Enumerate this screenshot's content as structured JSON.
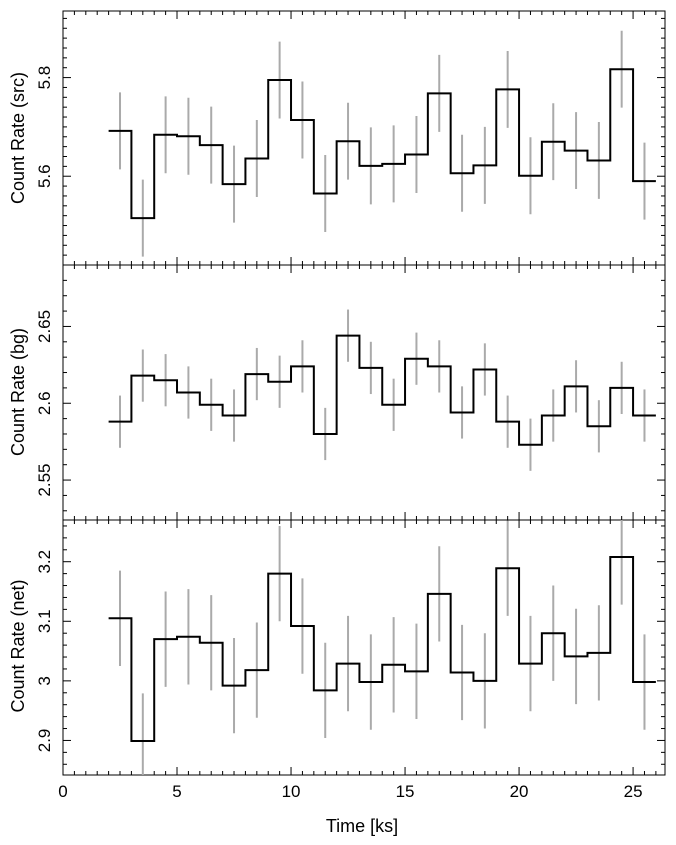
{
  "chart_data": [
    {
      "type": "line",
      "ylabel": "Count Rate (src)",
      "xlabel": "",
      "xlim": [
        0,
        26.4
      ],
      "ylim": [
        5.42,
        5.935
      ],
      "yticks_major": [
        5.6,
        5.8
      ],
      "ytick_labels": [
        "5.6",
        "5.8"
      ],
      "yminor_step": 0.02,
      "series": [
        {
          "x": [
            2.5,
            3.5,
            4.5,
            5.5,
            6.5,
            7.5,
            8.5,
            9.5,
            10.5,
            11.5,
            12.5,
            13.5,
            14.5,
            15.5,
            16.5,
            17.5,
            18.5,
            19.5,
            20.5,
            21.5,
            22.5,
            23.5,
            24.5,
            25.5
          ],
          "values": [
            5.692,
            5.515,
            5.684,
            5.681,
            5.663,
            5.584,
            5.636,
            5.795,
            5.714,
            5.565,
            5.671,
            5.621,
            5.625,
            5.644,
            5.768,
            5.606,
            5.622,
            5.776,
            5.601,
            5.67,
            5.652,
            5.632,
            5.817,
            5.59
          ],
          "errors": [
            0.078,
            0.078,
            0.078,
            0.078,
            0.078,
            0.078,
            0.078,
            0.078,
            0.078,
            0.078,
            0.078,
            0.078,
            0.078,
            0.078,
            0.078,
            0.078,
            0.078,
            0.078,
            0.078,
            0.078,
            0.078,
            0.078,
            0.078,
            0.078
          ]
        }
      ]
    },
    {
      "type": "line",
      "ylabel": "Count Rate (bg)",
      "xlabel": "",
      "xlim": [
        0,
        26.4
      ],
      "ylim": [
        2.524,
        2.69
      ],
      "yticks_major": [
        2.55,
        2.6,
        2.65
      ],
      "ytick_labels": [
        "2.55",
        "2.6",
        "2.65"
      ],
      "yminor_step": 0.01,
      "series": [
        {
          "x": [
            2.5,
            3.5,
            4.5,
            5.5,
            6.5,
            7.5,
            8.5,
            9.5,
            10.5,
            11.5,
            12.5,
            13.5,
            14.5,
            15.5,
            16.5,
            17.5,
            18.5,
            19.5,
            20.5,
            21.5,
            22.5,
            23.5,
            24.5,
            25.5
          ],
          "values": [
            2.588,
            2.618,
            2.615,
            2.607,
            2.599,
            2.592,
            2.619,
            2.614,
            2.624,
            2.58,
            2.644,
            2.623,
            2.599,
            2.629,
            2.624,
            2.594,
            2.622,
            2.588,
            2.573,
            2.592,
            2.611,
            2.585,
            2.61,
            2.592
          ],
          "errors": [
            0.017,
            0.017,
            0.017,
            0.017,
            0.017,
            0.017,
            0.017,
            0.017,
            0.017,
            0.017,
            0.017,
            0.017,
            0.017,
            0.017,
            0.017,
            0.017,
            0.017,
            0.017,
            0.017,
            0.017,
            0.017,
            0.017,
            0.017,
            0.017
          ]
        }
      ]
    },
    {
      "type": "line",
      "ylabel": "Count Rate (net)",
      "xlabel": "Time [ks]",
      "xlim": [
        0,
        26.4
      ],
      "ylim": [
        2.842,
        3.27
      ],
      "xticks_major": [
        0,
        5,
        10,
        15,
        20,
        25
      ],
      "xtick_labels": [
        "0",
        "5",
        "10",
        "15",
        "20",
        "25"
      ],
      "yticks_major": [
        2.9,
        3.0,
        3.1,
        3.2
      ],
      "ytick_labels": [
        "2.9",
        "3",
        "3.1",
        "3.2"
      ],
      "yminor_step": 0.02,
      "series": [
        {
          "x": [
            2.5,
            3.5,
            4.5,
            5.5,
            6.5,
            7.5,
            8.5,
            9.5,
            10.5,
            11.5,
            12.5,
            13.5,
            14.5,
            15.5,
            16.5,
            17.5,
            18.5,
            19.5,
            20.5,
            21.5,
            22.5,
            23.5,
            24.5,
            25.5
          ],
          "values": [
            3.105,
            2.899,
            3.07,
            3.074,
            3.064,
            2.992,
            3.018,
            3.18,
            3.092,
            2.984,
            3.029,
            2.998,
            3.027,
            3.016,
            3.146,
            3.014,
            3.0,
            3.189,
            3.029,
            3.08,
            3.041,
            3.047,
            3.208,
            2.998
          ],
          "errors": [
            0.08,
            0.08,
            0.08,
            0.08,
            0.08,
            0.08,
            0.08,
            0.08,
            0.08,
            0.08,
            0.08,
            0.08,
            0.08,
            0.08,
            0.08,
            0.08,
            0.08,
            0.08,
            0.08,
            0.08,
            0.08,
            0.08,
            0.08,
            0.08
          ]
        }
      ]
    }
  ],
  "colors": {
    "histogram": "#000000",
    "errorbar": "#aaaaaa",
    "frame": "#000000"
  }
}
